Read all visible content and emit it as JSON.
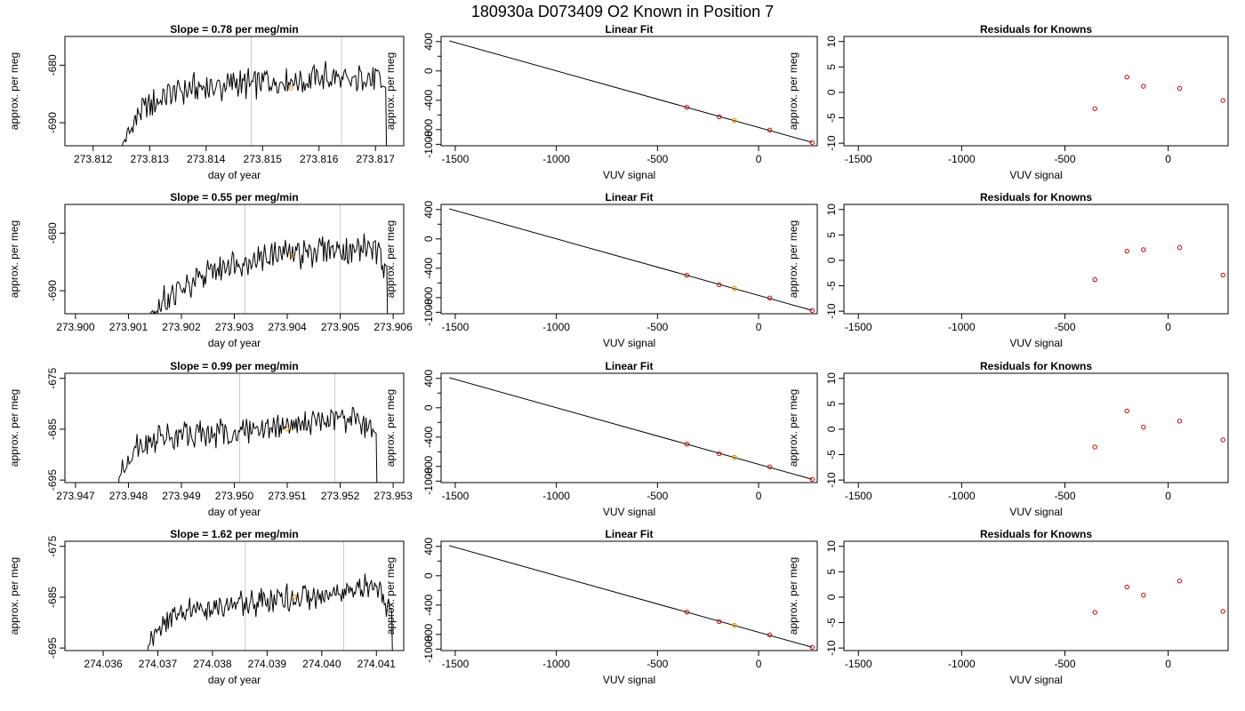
{
  "page": {
    "title": "180930a      D073409   O2 Known in Position  7"
  },
  "colors": {
    "trace": "#000000",
    "known_points": "#cc0000",
    "unknown_point": "#e69500",
    "vlines": "#c8c8c8"
  },
  "chart_data": [
    {
      "type": "line",
      "title": "Slope =  0.78  per meg/min",
      "xlabel": "day of year",
      "ylabel": "approx. per meg",
      "xlim": [
        273.8115,
        273.8175
      ],
      "ylim": [
        -694,
        -675
      ],
      "xticks": [
        "273.812",
        "273.813",
        "273.814",
        "273.815",
        "273.816",
        "273.817"
      ],
      "xtick_values": [
        273.812,
        273.813,
        273.814,
        273.815,
        273.816,
        273.817
      ],
      "yticks": [
        "-690",
        "-680"
      ],
      "ytick_values": [
        -690,
        -680
      ],
      "trace_x_range": [
        273.8125,
        273.8172
      ],
      "trace_base": [
        -694,
        -688,
        -686,
        -684.5,
        -684,
        -684,
        -683.5,
        -683,
        -683,
        -682.5,
        -682.5,
        -682,
        -683,
        -682,
        -684
      ],
      "vlines": [
        273.8148,
        273.8164
      ],
      "marker": [
        273.8155,
        -684
      ]
    },
    {
      "type": "linear_fit",
      "title": "Linear Fit",
      "xlabel": "VUV signal",
      "ylabel": "approx. per meg",
      "xlim": [
        -1570,
        290
      ],
      "ylim": [
        -1020,
        470
      ],
      "xticks": [
        "-1500",
        "-1000",
        "-500",
        "0"
      ],
      "xtick_values": [
        -1500,
        -1000,
        -500,
        0
      ],
      "yticks": [
        "-1000",
        "-800",
        "-400",
        "0",
        "400"
      ],
      "ytick_values": [
        -1000,
        -800,
        -400,
        0,
        400
      ],
      "line_x": [
        -1530,
        265
      ],
      "line_y": [
        410,
        -975
      ],
      "points": [
        {
          "x": -355,
          "y": -496
        },
        {
          "x": -195,
          "y": -626
        },
        {
          "x": 55,
          "y": -806
        },
        {
          "x": 265,
          "y": -976
        }
      ],
      "highlight": {
        "x": -120,
        "y": -675
      }
    },
    {
      "type": "scatter",
      "title": "Residuals for Knowns",
      "xlabel": "VUV signal",
      "ylabel": "approx. per meg",
      "xlim": [
        -1570,
        290
      ],
      "ylim": [
        -10.5,
        11
      ],
      "xticks": [
        "-1500",
        "-1000",
        "-500",
        "0"
      ],
      "xtick_values": [
        -1500,
        -1000,
        -500,
        0
      ],
      "yticks": [
        "-10",
        "-5",
        "0",
        "5",
        "10"
      ],
      "ytick_values": [
        -10,
        -5,
        0,
        5,
        10
      ],
      "points": [
        {
          "x": -355,
          "y": -3.2
        },
        {
          "x": -200,
          "y": 3.0
        },
        {
          "x": -120,
          "y": 1.2
        },
        {
          "x": 55,
          "y": 0.8
        },
        {
          "x": 265,
          "y": -1.6
        }
      ]
    },
    {
      "type": "line",
      "title": "Slope =  0.55  per meg/min",
      "xlabel": "day of year",
      "ylabel": "approx. per meg",
      "xlim": [
        273.8998,
        273.9062
      ],
      "ylim": [
        -694,
        -675
      ],
      "xticks": [
        "273.900",
        "273.901",
        "273.902",
        "273.903",
        "273.904",
        "273.905",
        "273.906"
      ],
      "xtick_values": [
        273.9,
        273.901,
        273.902,
        273.903,
        273.904,
        273.905,
        273.906
      ],
      "yticks": [
        "-690",
        "-680"
      ],
      "ytick_values": [
        -690,
        -680
      ],
      "trace_x_range": [
        273.9014,
        273.9059
      ],
      "trace_base": [
        -694,
        -691,
        -690,
        -688,
        -686,
        -685,
        -684.5,
        -684,
        -683.5,
        -683.5,
        -683,
        -683,
        -683,
        -682.5,
        -686
      ],
      "vlines": [
        273.9032,
        273.905
      ],
      "marker": [
        273.9041,
        -684
      ]
    },
    {
      "type": "linear_fit",
      "title": "Linear Fit",
      "xlabel": "VUV signal",
      "ylabel": "approx. per meg",
      "xlim": [
        -1570,
        290
      ],
      "ylim": [
        -1020,
        470
      ],
      "xticks": [
        "-1500",
        "-1000",
        "-500",
        "0"
      ],
      "xtick_values": [
        -1500,
        -1000,
        -500,
        0
      ],
      "yticks": [
        "-1000",
        "-800",
        "-400",
        "0",
        "400"
      ],
      "ytick_values": [
        -1000,
        -800,
        -400,
        0,
        400
      ],
      "line_x": [
        -1530,
        265
      ],
      "line_y": [
        410,
        -975
      ],
      "points": [
        {
          "x": -355,
          "y": -496
        },
        {
          "x": -195,
          "y": -626
        },
        {
          "x": 55,
          "y": -806
        },
        {
          "x": 265,
          "y": -976
        }
      ],
      "highlight": {
        "x": -120,
        "y": -675
      }
    },
    {
      "type": "scatter",
      "title": "Residuals for Knowns",
      "xlabel": "VUV signal",
      "ylabel": "approx. per meg",
      "xlim": [
        -1570,
        290
      ],
      "ylim": [
        -10.5,
        11
      ],
      "xticks": [
        "-1500",
        "-1000",
        "-500",
        "0"
      ],
      "xtick_values": [
        -1500,
        -1000,
        -500,
        0
      ],
      "yticks": [
        "-10",
        "-5",
        "0",
        "5",
        "10"
      ],
      "ytick_values": [
        -10,
        -5,
        0,
        5,
        10
      ],
      "points": [
        {
          "x": -355,
          "y": -3.8
        },
        {
          "x": -200,
          "y": 1.8
        },
        {
          "x": -120,
          "y": 2.1
        },
        {
          "x": 55,
          "y": 2.5
        },
        {
          "x": 265,
          "y": -2.9
        }
      ]
    },
    {
      "type": "line",
      "title": "Slope =  0.99  per meg/min",
      "xlabel": "day of year",
      "ylabel": "approx. per meg",
      "xlim": [
        273.9468,
        273.9532
      ],
      "ylim": [
        -695.5,
        -674
      ],
      "xticks": [
        "273.947",
        "273.948",
        "273.949",
        "273.950",
        "273.951",
        "273.952",
        "273.953"
      ],
      "xtick_values": [
        273.947,
        273.948,
        273.949,
        273.95,
        273.951,
        273.952,
        273.953
      ],
      "yticks": [
        "-695",
        "-685",
        "-675"
      ],
      "ytick_values": [
        -695,
        -685,
        -675
      ],
      "trace_x_range": [
        273.9478,
        273.9527
      ],
      "trace_base": [
        -695,
        -688,
        -687,
        -686.5,
        -686,
        -686,
        -685.5,
        -685,
        -684.5,
        -684.5,
        -684,
        -683.5,
        -683,
        -683,
        -686
      ],
      "vlines": [
        273.9501,
        273.9519
      ],
      "marker": [
        273.951,
        -685
      ]
    },
    {
      "type": "linear_fit",
      "title": "Linear Fit",
      "xlabel": "VUV signal",
      "ylabel": "approx. per meg",
      "xlim": [
        -1570,
        290
      ],
      "ylim": [
        -1020,
        470
      ],
      "xticks": [
        "-1500",
        "-1000",
        "-500",
        "0"
      ],
      "xtick_values": [
        -1500,
        -1000,
        -500,
        0
      ],
      "yticks": [
        "-1000",
        "-800",
        "-400",
        "0",
        "400"
      ],
      "ytick_values": [
        -1000,
        -800,
        -400,
        0,
        400
      ],
      "line_x": [
        -1530,
        265
      ],
      "line_y": [
        410,
        -975
      ],
      "points": [
        {
          "x": -355,
          "y": -496
        },
        {
          "x": -195,
          "y": -626
        },
        {
          "x": 55,
          "y": -806
        },
        {
          "x": 265,
          "y": -976
        }
      ],
      "highlight": {
        "x": -120,
        "y": -675
      }
    },
    {
      "type": "scatter",
      "title": "Residuals for Knowns",
      "xlabel": "VUV signal",
      "ylabel": "approx. per meg",
      "xlim": [
        -1570,
        290
      ],
      "ylim": [
        -10.5,
        11
      ],
      "xticks": [
        "-1500",
        "-1000",
        "-500",
        "0"
      ],
      "xtick_values": [
        -1500,
        -1000,
        -500,
        0
      ],
      "yticks": [
        "-10",
        "-5",
        "0",
        "5",
        "10"
      ],
      "ytick_values": [
        -10,
        -5,
        0,
        5,
        10
      ],
      "points": [
        {
          "x": -355,
          "y": -3.5
        },
        {
          "x": -200,
          "y": 3.6
        },
        {
          "x": -120,
          "y": 0.4
        },
        {
          "x": 55,
          "y": 1.6
        },
        {
          "x": 265,
          "y": -2.1
        }
      ]
    },
    {
      "type": "line",
      "title": "Slope =  1.62  per meg/min",
      "xlabel": "day of year",
      "ylabel": "approx. per meg",
      "xlim": [
        274.0353,
        274.0415
      ],
      "ylim": [
        -695.5,
        -674
      ],
      "xticks": [
        "274.036",
        "274.037",
        "274.038",
        "274.039",
        "274.040",
        "274.041"
      ],
      "xtick_values": [
        274.036,
        274.037,
        274.038,
        274.039,
        274.04,
        274.041
      ],
      "yticks": [
        "-695",
        "-685",
        "-675"
      ],
      "ytick_values": [
        -695,
        -685,
        -675
      ],
      "trace_x_range": [
        274.0368,
        274.0413
      ],
      "trace_base": [
        -695,
        -690,
        -688,
        -687.5,
        -687,
        -686.5,
        -686,
        -685.5,
        -685,
        -685,
        -684.5,
        -684,
        -683.5,
        -683,
        -688
      ],
      "vlines": [
        274.0386,
        274.0404
      ],
      "marker": [
        274.0395,
        -685
      ]
    },
    {
      "type": "linear_fit",
      "title": "Linear Fit",
      "xlabel": "VUV signal",
      "ylabel": "approx. per meg",
      "xlim": [
        -1570,
        290
      ],
      "ylim": [
        -1020,
        470
      ],
      "xticks": [
        "-1500",
        "-1000",
        "-500",
        "0"
      ],
      "xtick_values": [
        -1500,
        -1000,
        -500,
        0
      ],
      "yticks": [
        "-1000",
        "-800",
        "-400",
        "0",
        "400"
      ],
      "ytick_values": [
        -1000,
        -800,
        -400,
        0,
        400
      ],
      "line_x": [
        -1530,
        265
      ],
      "line_y": [
        410,
        -975
      ],
      "points": [
        {
          "x": -355,
          "y": -496
        },
        {
          "x": -195,
          "y": -626
        },
        {
          "x": 55,
          "y": -806
        },
        {
          "x": 265,
          "y": -976
        }
      ],
      "highlight": {
        "x": -120,
        "y": -675
      }
    },
    {
      "type": "scatter",
      "title": "Residuals for Knowns",
      "xlabel": "VUV signal",
      "ylabel": "approx. per meg",
      "xlim": [
        -1570,
        290
      ],
      "ylim": [
        -10.5,
        11
      ],
      "xticks": [
        "-1500",
        "-1000",
        "-500",
        "0"
      ],
      "xtick_values": [
        -1500,
        -1000,
        -500,
        0
      ],
      "yticks": [
        "-10",
        "-5",
        "0",
        "5",
        "10"
      ],
      "ytick_values": [
        -10,
        -5,
        0,
        5,
        10
      ],
      "points": [
        {
          "x": -355,
          "y": -3.0
        },
        {
          "x": -200,
          "y": 2.0
        },
        {
          "x": -120,
          "y": 0.4
        },
        {
          "x": 55,
          "y": 3.2
        },
        {
          "x": 265,
          "y": -2.8
        }
      ]
    }
  ]
}
